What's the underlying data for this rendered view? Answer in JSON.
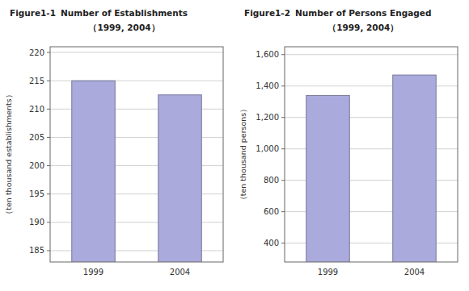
{
  "chart_data": [
    {
      "type": "bar",
      "annotations": [
        "Figure1-1"
      ],
      "title": "Number of Establishments",
      "subtitle": "（1999, 2004）",
      "y_label": "（ten thousand establishments）",
      "categories": [
        "1999",
        "2004"
      ],
      "values": [
        215,
        212.5
      ],
      "color": "#aaaadd",
      "ylim": [
        183,
        221
      ],
      "yticks": [
        185,
        190,
        195,
        200,
        205,
        210,
        215,
        220
      ],
      "grid": true
    },
    {
      "type": "bar",
      "annotations": [
        "Figure1-2"
      ],
      "title": "Number of Persons Engaged",
      "subtitle": "（1999, 2004）",
      "y_label": "（ten thousand persons）",
      "categories": [
        "1999",
        "2004"
      ],
      "values": [
        1340,
        1470
      ],
      "color": "#aaaadd",
      "ylim": [
        280,
        1650
      ],
      "yticks": [
        400,
        600,
        800,
        {
          "value": 1000,
          "label": "1,000"
        },
        {
          "value": 1200,
          "label": "1,200"
        },
        {
          "value": 1400,
          "label": "1,400"
        },
        {
          "value": 1600,
          "label": "1,600"
        }
      ],
      "grid": true
    }
  ]
}
